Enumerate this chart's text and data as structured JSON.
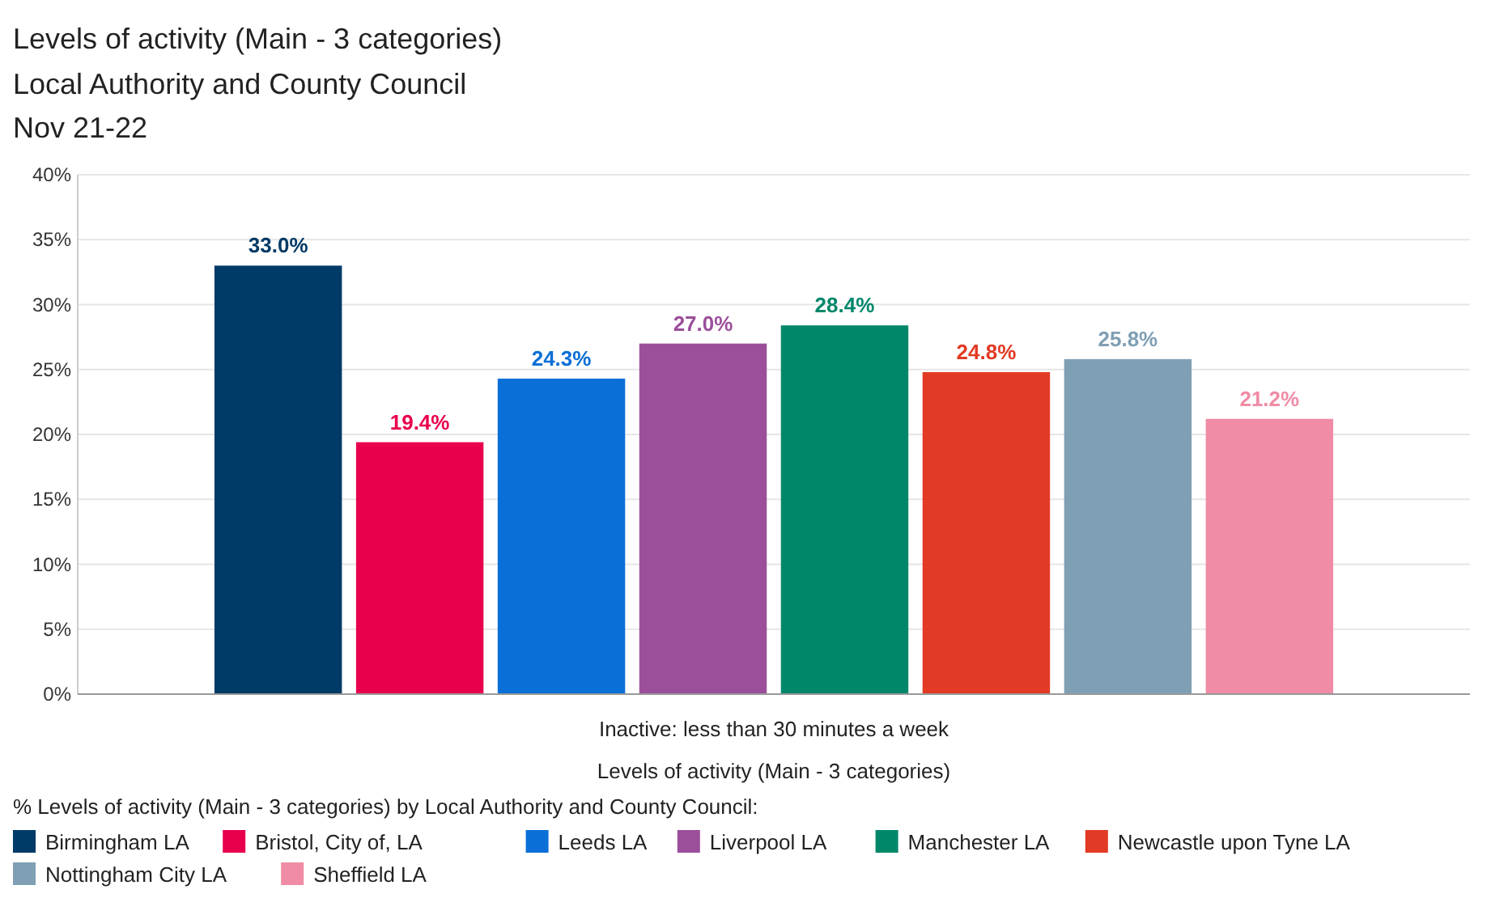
{
  "chart_data": {
    "type": "bar",
    "title": "Levels of activity (Main - 3 categories)",
    "subtitle": "Local Authority and County Council\nNov 21-22",
    "xlabel": "Levels of activity (Main - 3 categories)",
    "legend_title": "% Levels of activity (Main - 3 categories) by Local Authority and County Council:",
    "categories": [
      "Inactive: less than 30 minutes a week"
    ],
    "series": [
      {
        "name": "Birmingham LA",
        "color": "#003a66",
        "values": [
          33.0
        ],
        "value_labels": [
          "33.0%"
        ]
      },
      {
        "name": "Bristol, City of,  LA",
        "color": "#e8004c",
        "values": [
          19.4
        ],
        "value_labels": [
          "19.4%"
        ]
      },
      {
        "name": "Leeds LA",
        "color": "#0a6fd6",
        "values": [
          24.3
        ],
        "value_labels": [
          "24.3%"
        ]
      },
      {
        "name": "Liverpool LA",
        "color": "#9b4f9b",
        "values": [
          27.0
        ],
        "value_labels": [
          "27.0%"
        ]
      },
      {
        "name": "Manchester LA",
        "color": "#00876a",
        "values": [
          28.4
        ],
        "value_labels": [
          "28.4%"
        ]
      },
      {
        "name": "Newcastle upon Tyne LA",
        "color": "#e23a24",
        "values": [
          24.8
        ],
        "value_labels": [
          "24.8%"
        ]
      },
      {
        "name": "Nottingham City LA",
        "color": "#7f9fb4",
        "values": [
          25.8
        ],
        "value_labels": [
          "25.8%"
        ]
      },
      {
        "name": "Sheffield LA",
        "color": "#f08ca5",
        "values": [
          21.2
        ],
        "value_labels": [
          "21.2%"
        ]
      }
    ],
    "ylim": [
      0,
      40
    ],
    "yticks": [
      {
        "value": 0,
        "label": "0%"
      },
      {
        "value": 5,
        "label": "5%"
      },
      {
        "value": 10,
        "label": "10%"
      },
      {
        "value": 15,
        "label": "15%"
      },
      {
        "value": 20,
        "label": "20%"
      },
      {
        "value": 25,
        "label": "25%"
      },
      {
        "value": 30,
        "label": "30%"
      },
      {
        "value": 35,
        "label": "35%"
      },
      {
        "value": 40,
        "label": "40%"
      }
    ],
    "grid": "y",
    "legend": "bottom"
  }
}
